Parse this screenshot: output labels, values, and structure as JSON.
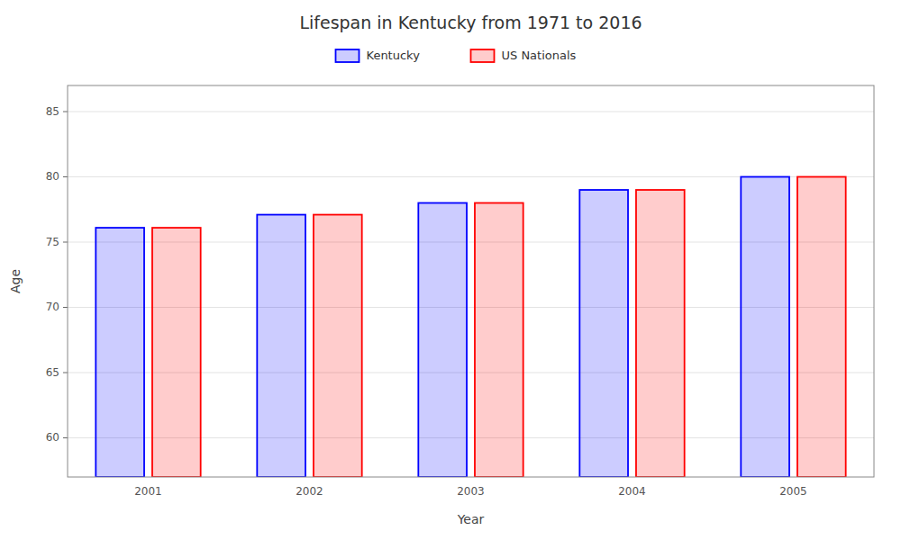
{
  "chart_data": {
    "type": "bar",
    "title": "Lifespan in Kentucky from 1971 to 2016",
    "xlabel": "Year",
    "ylabel": "Age",
    "categories": [
      "2001",
      "2002",
      "2003",
      "2004",
      "2005"
    ],
    "series": [
      {
        "name": "Kentucky",
        "color": "#0000ff",
        "values": [
          76.1,
          77.1,
          78.0,
          79.0,
          80.0
        ]
      },
      {
        "name": "US Nationals",
        "color": "#ff0000",
        "values": [
          76.1,
          77.1,
          78.0,
          79.0,
          80.0
        ]
      }
    ],
    "ylim": [
      57,
      87
    ],
    "yticks": [
      60,
      65,
      70,
      75,
      80,
      85
    ],
    "grid": true,
    "legend": "top"
  }
}
